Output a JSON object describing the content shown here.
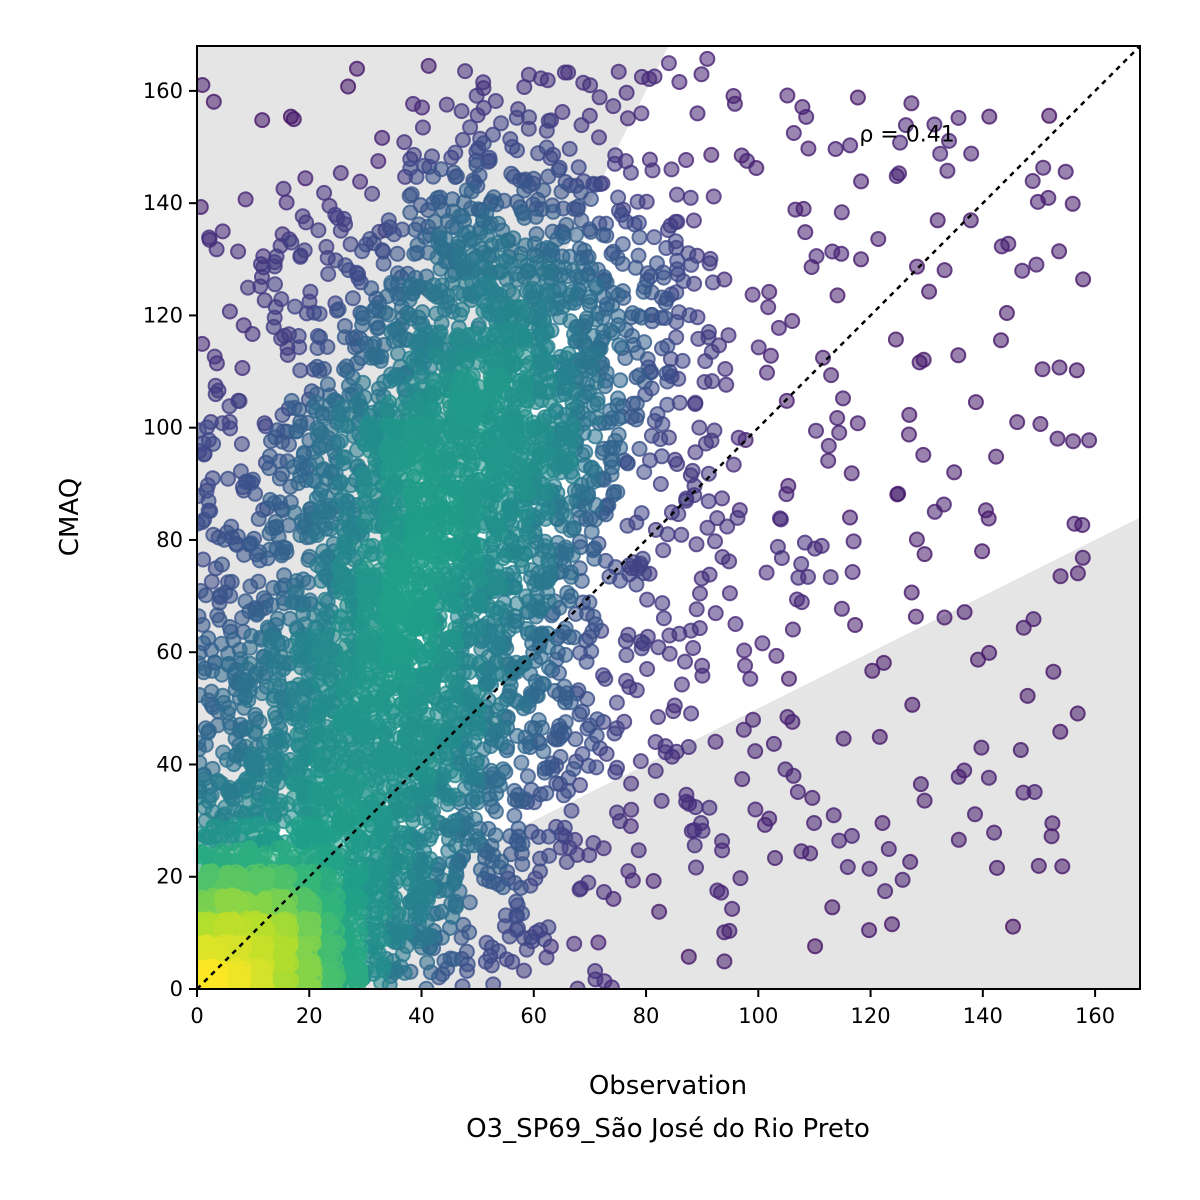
{
  "chart_data": {
    "type": "scatter",
    "title": "",
    "xlabel": "Observation",
    "xlabel_sub": "O3_SP69_São José do Rio Preto",
    "ylabel": "CMAQ",
    "xlim": [
      0,
      168
    ],
    "ylim": [
      0,
      168
    ],
    "xticks": [
      "0",
      "20",
      "40",
      "60",
      "80",
      "100",
      "120",
      "140",
      "160"
    ],
    "yticks": [
      "0",
      "20",
      "40",
      "60",
      "80",
      "100",
      "120",
      "140",
      "160"
    ],
    "annotation": "ρ = 0.41",
    "annotation_pos": [
      118,
      151
    ],
    "identity_line": [
      [
        0,
        0
      ],
      [
        168,
        168
      ]
    ],
    "shaded_regions": [
      {
        "name": "upper",
        "polygon": [
          [
            0,
            0
          ],
          [
            0,
            168
          ],
          [
            84,
            168
          ]
        ]
      },
      {
        "name": "lower",
        "polygon": [
          [
            0,
            0
          ],
          [
            168,
            0
          ],
          [
            168,
            84
          ]
        ]
      }
    ],
    "colormap": "viridis",
    "grid": false,
    "legend": "none",
    "n_points_approx": 6000,
    "density_clusters": [
      {
        "x": 48,
        "y": 100,
        "sx": 10,
        "sy": 18
      },
      {
        "x": 30,
        "y": 35,
        "sx": 9,
        "sy": 14
      },
      {
        "x": 10,
        "y": 8,
        "sx": 7,
        "sy": 6
      }
    ]
  },
  "colors": {
    "shade": "#e5e5e5",
    "identity_line": "#000000",
    "point_low": "#440154",
    "point_high": "#fde725"
  }
}
